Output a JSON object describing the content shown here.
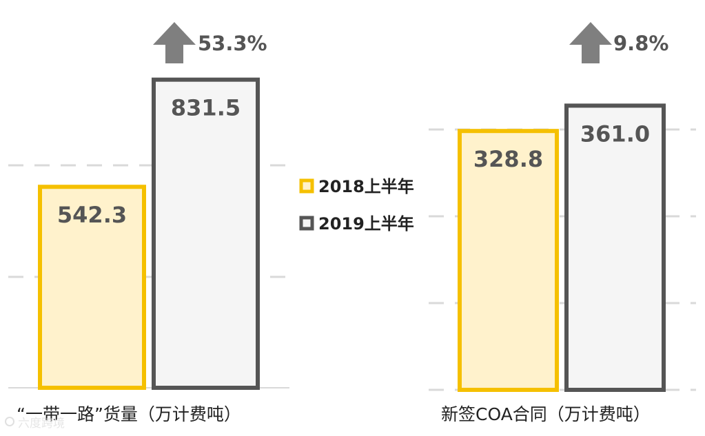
{
  "chart_data": [
    {
      "type": "bar",
      "xlabel": "“一带一路”货量（万计费吨）",
      "categories": [
        "2018上半年",
        "2019上半年"
      ],
      "values": [
        542.3,
        831.5
      ],
      "value_labels": [
        "542.3",
        "831.5"
      ],
      "growth": "53.3%",
      "grid": true
    },
    {
      "type": "bar",
      "xlabel": "新签COA合同（万计费吨）",
      "categories": [
        "2018上半年",
        "2019上半年"
      ],
      "values": [
        328.8,
        361.0
      ],
      "value_labels": [
        "328.8",
        "361.0"
      ],
      "growth": "9.8%",
      "grid": true
    }
  ],
  "legend": {
    "placement": "center",
    "items": [
      {
        "label": "2018上半年",
        "color": "#f5c000",
        "fill": "#fff2cc"
      },
      {
        "label": "2019上半年",
        "color": "#555555",
        "fill": "#f5f5f5"
      }
    ]
  },
  "watermark": "六度跨境"
}
